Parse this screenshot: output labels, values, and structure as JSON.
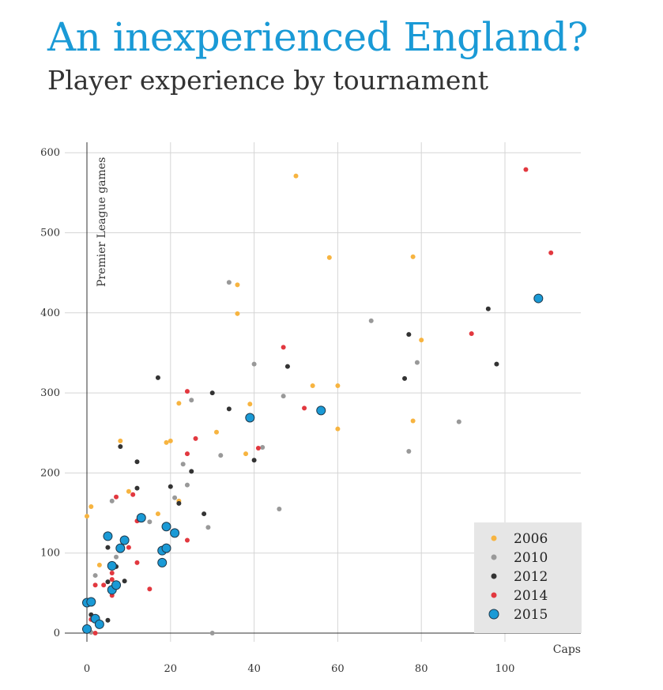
{
  "title": "An inexperienced England?",
  "subtitle": "Player experience by tournament",
  "colors": {
    "title": "#1a9ad6",
    "2006": "#f7b440",
    "2010": "#999999",
    "2012": "#333333",
    "2014": "#e2383f",
    "2015": "#1a9ad6",
    "legend_bg": "#e6e6e6",
    "grid": "#d5d5d5"
  },
  "chart_data": {
    "type": "scatter",
    "xlabel": "Caps",
    "ylabel": "Premier League games",
    "xlim": [
      0,
      118
    ],
    "ylim": [
      0,
      600
    ],
    "xticks": [
      0,
      20,
      40,
      60,
      80,
      100
    ],
    "yticks": [
      0,
      100,
      200,
      300,
      400,
      500,
      600
    ],
    "grid": true,
    "legend": "bottom-right",
    "series": [
      {
        "name": "2006",
        "color": "#f7b440",
        "points": [
          [
            0,
            146
          ],
          [
            1,
            158
          ],
          [
            3,
            85
          ],
          [
            8,
            240
          ],
          [
            10,
            177
          ],
          [
            17,
            149
          ],
          [
            19,
            238
          ],
          [
            20,
            240
          ],
          [
            22,
            287
          ],
          [
            22,
            165
          ],
          [
            31,
            251
          ],
          [
            36,
            435
          ],
          [
            36,
            399
          ],
          [
            38,
            224
          ],
          [
            39,
            286
          ],
          [
            50,
            571
          ],
          [
            54,
            309
          ],
          [
            58,
            469
          ],
          [
            60,
            309
          ],
          [
            60,
            255
          ],
          [
            78,
            470
          ],
          [
            78,
            265
          ],
          [
            80,
            366
          ]
        ]
      },
      {
        "name": "2010",
        "color": "#999999",
        "points": [
          [
            0,
            2
          ],
          [
            1,
            1
          ],
          [
            2,
            72
          ],
          [
            6,
            165
          ],
          [
            7,
            95
          ],
          [
            15,
            139
          ],
          [
            21,
            169
          ],
          [
            23,
            211
          ],
          [
            24,
            185
          ],
          [
            25,
            291
          ],
          [
            29,
            132
          ],
          [
            30,
            0
          ],
          [
            32,
            222
          ],
          [
            34,
            438
          ],
          [
            40,
            336
          ],
          [
            42,
            232
          ],
          [
            46,
            155
          ],
          [
            47,
            296
          ],
          [
            68,
            390
          ],
          [
            77,
            227
          ],
          [
            79,
            338
          ],
          [
            89,
            264
          ]
        ]
      },
      {
        "name": "2012",
        "color": "#333333",
        "points": [
          [
            1,
            23
          ],
          [
            5,
            16
          ],
          [
            5,
            64
          ],
          [
            5,
            107
          ],
          [
            7,
            83
          ],
          [
            8,
            233
          ],
          [
            9,
            65
          ],
          [
            12,
            214
          ],
          [
            12,
            181
          ],
          [
            17,
            319
          ],
          [
            20,
            183
          ],
          [
            22,
            162
          ],
          [
            25,
            202
          ],
          [
            28,
            149
          ],
          [
            30,
            300
          ],
          [
            34,
            280
          ],
          [
            40,
            216
          ],
          [
            48,
            333
          ],
          [
            76,
            318
          ],
          [
            77,
            373
          ],
          [
            96,
            405
          ],
          [
            98,
            336
          ]
        ]
      },
      {
        "name": "2014",
        "color": "#e2383f",
        "points": [
          [
            1,
            17
          ],
          [
            2,
            60
          ],
          [
            2,
            0
          ],
          [
            4,
            60
          ],
          [
            6,
            47
          ],
          [
            6,
            67
          ],
          [
            6,
            75
          ],
          [
            7,
            170
          ],
          [
            10,
            107
          ],
          [
            11,
            173
          ],
          [
            12,
            140
          ],
          [
            12,
            88
          ],
          [
            15,
            55
          ],
          [
            24,
            302
          ],
          [
            24,
            224
          ],
          [
            24,
            116
          ],
          [
            26,
            243
          ],
          [
            41,
            231
          ],
          [
            47,
            357
          ],
          [
            52,
            281
          ],
          [
            92,
            374
          ],
          [
            105,
            579
          ],
          [
            111,
            475
          ]
        ]
      },
      {
        "name": "2015",
        "color": "#1a9ad6",
        "points": [
          [
            0,
            38
          ],
          [
            0,
            5
          ],
          [
            1,
            39
          ],
          [
            2,
            18
          ],
          [
            3,
            11
          ],
          [
            5,
            121
          ],
          [
            6,
            84
          ],
          [
            6,
            54
          ],
          [
            7,
            60
          ],
          [
            8,
            106
          ],
          [
            9,
            116
          ],
          [
            13,
            144
          ],
          [
            18,
            103
          ],
          [
            18,
            88
          ],
          [
            19,
            133
          ],
          [
            19,
            106
          ],
          [
            21,
            125
          ],
          [
            39,
            269
          ],
          [
            56,
            278
          ],
          [
            108,
            418
          ]
        ]
      }
    ]
  }
}
